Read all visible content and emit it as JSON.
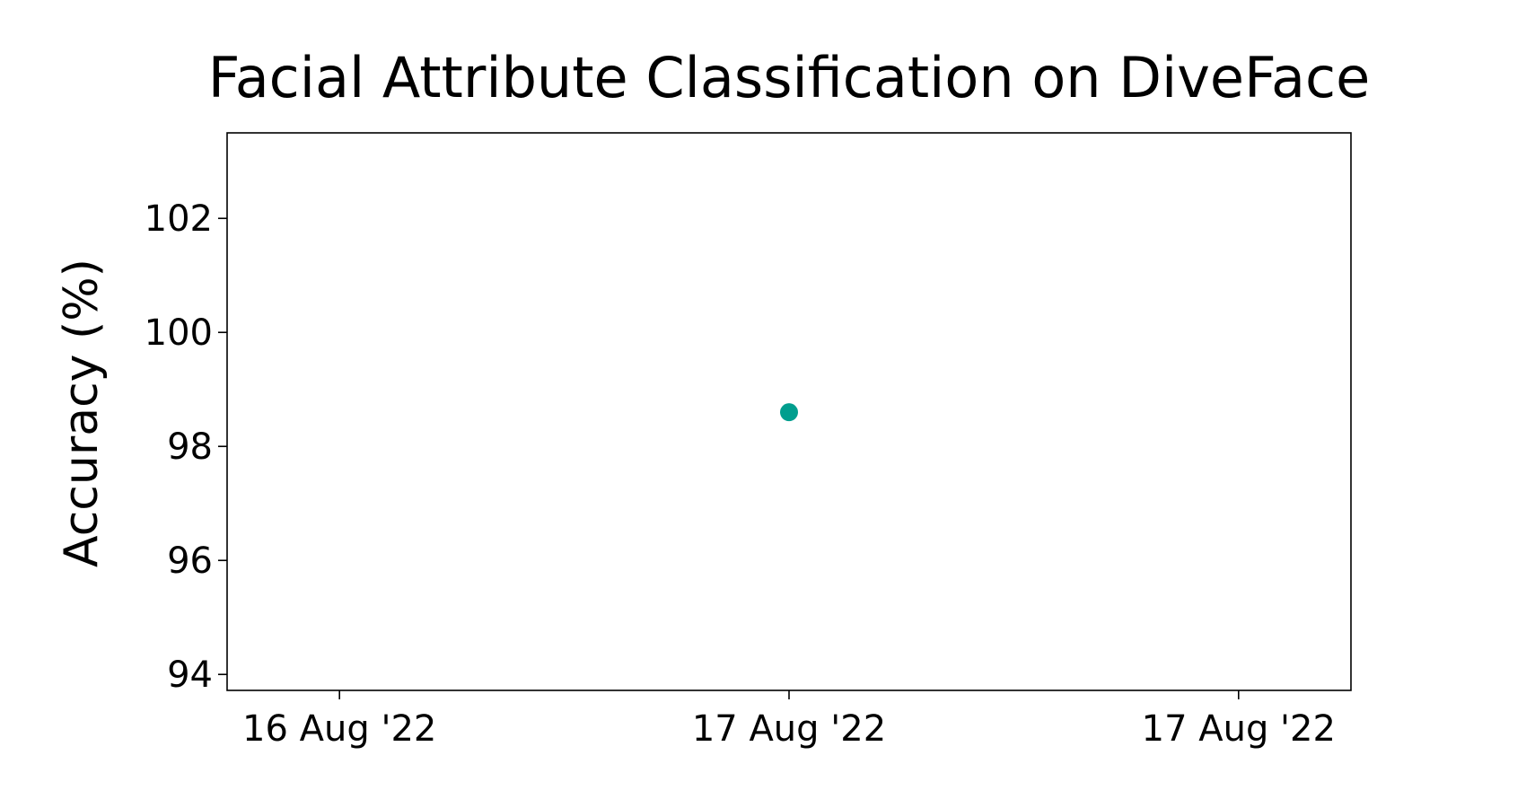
{
  "chart_data": {
    "type": "scatter",
    "title": "Facial Attribute Classification on DiveFace",
    "ylabel": "Accuracy (%)",
    "x": [
      "17 Aug '22"
    ],
    "values": [
      98.6
    ],
    "color": "#009e8e",
    "xticks": [
      "16 Aug '22",
      "17 Aug '22",
      "17 Aug '22"
    ],
    "ylim": [
      93.72,
      103.5
    ],
    "yticks": [
      94,
      96,
      98,
      100,
      102
    ]
  }
}
